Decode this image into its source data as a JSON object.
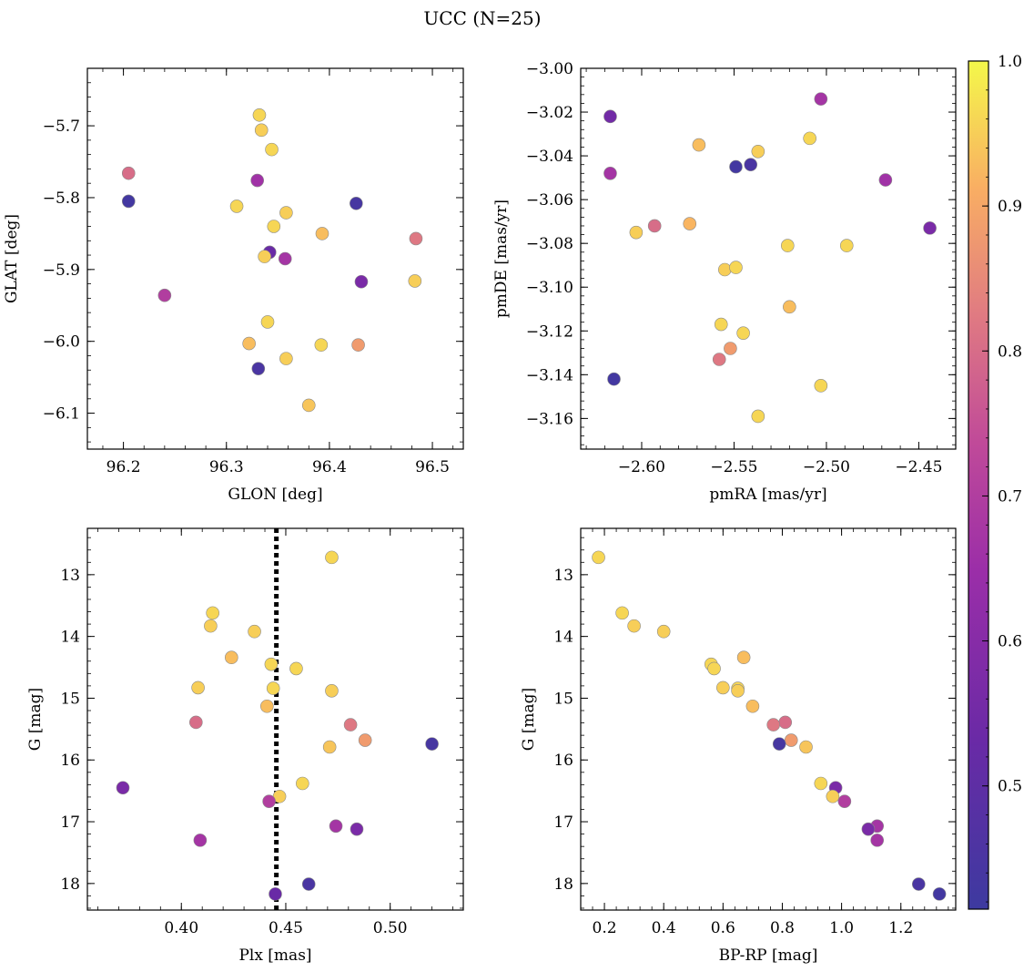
{
  "figure_title": "UCC (N=25)",
  "colors": {
    "marker_edge": "#8a8a8a",
    "axis": "#000000",
    "colormap": "plasma",
    "reference_line": "#000000"
  },
  "colorbar": {
    "min": 0.415,
    "max": 1.0,
    "ticks": [
      0.5,
      0.6,
      0.7,
      0.8,
      0.9,
      1.0
    ],
    "tick_labels": [
      "0.5",
      "0.6",
      "0.7",
      "0.8",
      "0.9",
      "1.0"
    ]
  },
  "chart_data": [
    {
      "type": "scatter",
      "xlabel": "GLON [deg]",
      "ylabel": "GLAT [deg]",
      "xlim": [
        96.165,
        96.53
      ],
      "ylim": [
        -6.15,
        -5.62
      ],
      "y_inverted": false,
      "xticks": [
        96.2,
        96.3,
        96.4,
        96.5
      ],
      "xtick_labels": [
        "96.2",
        "96.3",
        "96.4",
        "96.5"
      ],
      "yticks": [
        -6.1,
        -6.0,
        -5.9,
        -5.8,
        -5.7
      ],
      "ytick_labels": [
        "−6.1",
        "−6.0",
        "−5.9",
        "−5.8",
        "−5.7"
      ],
      "points": [
        {
          "x": 96.332,
          "y": -5.685,
          "c": 0.96
        },
        {
          "x": 96.334,
          "y": -5.706,
          "c": 0.95
        },
        {
          "x": 96.344,
          "y": -5.733,
          "c": 0.96
        },
        {
          "x": 96.205,
          "y": -5.766,
          "c": 0.8
        },
        {
          "x": 96.33,
          "y": -5.776,
          "c": 0.66
        },
        {
          "x": 96.205,
          "y": -5.805,
          "c": 0.43
        },
        {
          "x": 96.426,
          "y": -5.808,
          "c": 0.44
        },
        {
          "x": 96.31,
          "y": -5.812,
          "c": 0.96
        },
        {
          "x": 96.358,
          "y": -5.821,
          "c": 0.95
        },
        {
          "x": 96.346,
          "y": -5.84,
          "c": 0.96
        },
        {
          "x": 96.393,
          "y": -5.85,
          "c": 0.93
        },
        {
          "x": 96.484,
          "y": -5.857,
          "c": 0.82
        },
        {
          "x": 96.342,
          "y": -5.876,
          "c": 0.53
        },
        {
          "x": 96.337,
          "y": -5.882,
          "c": 0.95
        },
        {
          "x": 96.357,
          "y": -5.885,
          "c": 0.67
        },
        {
          "x": 96.431,
          "y": -5.917,
          "c": 0.57
        },
        {
          "x": 96.483,
          "y": -5.916,
          "c": 0.95
        },
        {
          "x": 96.24,
          "y": -5.936,
          "c": 0.7
        },
        {
          "x": 96.34,
          "y": -5.973,
          "c": 0.96
        },
        {
          "x": 96.322,
          "y": -6.003,
          "c": 0.93
        },
        {
          "x": 96.392,
          "y": -6.005,
          "c": 0.96
        },
        {
          "x": 96.428,
          "y": -6.005,
          "c": 0.88
        },
        {
          "x": 96.331,
          "y": -6.038,
          "c": 0.45
        },
        {
          "x": 96.358,
          "y": -6.024,
          "c": 0.95
        },
        {
          "x": 96.38,
          "y": -6.089,
          "c": 0.94
        }
      ]
    },
    {
      "type": "scatter",
      "xlabel": "pmRA [mas/yr]",
      "ylabel": "pmDE [mas/yr]",
      "xlim": [
        -2.633,
        -2.43
      ],
      "ylim": [
        -3.174,
        -3.0
      ],
      "y_inverted": false,
      "xticks": [
        -2.6,
        -2.55,
        -2.5,
        -2.45
      ],
      "xtick_labels": [
        "−2.60",
        "−2.55",
        "−2.50",
        "−2.45"
      ],
      "yticks": [
        -3.16,
        -3.14,
        -3.12,
        -3.1,
        -3.08,
        -3.06,
        -3.04,
        -3.02,
        -3.0
      ],
      "ytick_labels": [
        "−3.16",
        "−3.14",
        "−3.12",
        "−3.10",
        "−3.08",
        "−3.06",
        "−3.04",
        "−3.02",
        "−3.00"
      ],
      "points": [
        {
          "x": -2.503,
          "y": -3.014,
          "c": 0.67
        },
        {
          "x": -2.617,
          "y": -3.022,
          "c": 0.55
        },
        {
          "x": -2.509,
          "y": -3.032,
          "c": 0.96
        },
        {
          "x": -2.569,
          "y": -3.035,
          "c": 0.93
        },
        {
          "x": -2.537,
          "y": -3.038,
          "c": 0.95
        },
        {
          "x": -2.549,
          "y": -3.045,
          "c": 0.43
        },
        {
          "x": -2.541,
          "y": -3.044,
          "c": 0.45
        },
        {
          "x": -2.617,
          "y": -3.048,
          "c": 0.67
        },
        {
          "x": -2.468,
          "y": -3.051,
          "c": 0.66
        },
        {
          "x": -2.574,
          "y": -3.071,
          "c": 0.92
        },
        {
          "x": -2.593,
          "y": -3.072,
          "c": 0.8
        },
        {
          "x": -2.444,
          "y": -3.073,
          "c": 0.57
        },
        {
          "x": -2.603,
          "y": -3.075,
          "c": 0.95
        },
        {
          "x": -2.521,
          "y": -3.081,
          "c": 0.96
        },
        {
          "x": -2.489,
          "y": -3.081,
          "c": 0.96
        },
        {
          "x": -2.555,
          "y": -3.092,
          "c": 0.95
        },
        {
          "x": -2.549,
          "y": -3.091,
          "c": 0.96
        },
        {
          "x": -2.52,
          "y": -3.109,
          "c": 0.93
        },
        {
          "x": -2.557,
          "y": -3.117,
          "c": 0.96
        },
        {
          "x": -2.545,
          "y": -3.121,
          "c": 0.96
        },
        {
          "x": -2.552,
          "y": -3.128,
          "c": 0.88
        },
        {
          "x": -2.558,
          "y": -3.133,
          "c": 0.82
        },
        {
          "x": -2.615,
          "y": -3.142,
          "c": 0.43
        },
        {
          "x": -2.503,
          "y": -3.145,
          "c": 0.96
        },
        {
          "x": -2.537,
          "y": -3.159,
          "c": 0.96
        }
      ]
    },
    {
      "type": "scatter",
      "xlabel": "Plx [mas]",
      "ylabel": "G [mag]",
      "xlim": [
        0.355,
        0.535
      ],
      "ylim": [
        12.25,
        18.43
      ],
      "y_inverted": true,
      "vline": 0.4455,
      "xticks": [
        0.4,
        0.45,
        0.5
      ],
      "xtick_labels": [
        "0.40",
        "0.45",
        "0.50"
      ],
      "yticks": [
        13,
        14,
        15,
        16,
        17,
        18
      ],
      "ytick_labels": [
        "13",
        "14",
        "15",
        "16",
        "17",
        "18"
      ],
      "points": [
        {
          "x": 0.472,
          "y": 12.72,
          "c": 0.96
        },
        {
          "x": 0.415,
          "y": 13.62,
          "c": 0.96
        },
        {
          "x": 0.414,
          "y": 13.83,
          "c": 0.95
        },
        {
          "x": 0.435,
          "y": 13.92,
          "c": 0.95
        },
        {
          "x": 0.424,
          "y": 14.34,
          "c": 0.93
        },
        {
          "x": 0.443,
          "y": 14.45,
          "c": 0.96
        },
        {
          "x": 0.455,
          "y": 14.52,
          "c": 0.96
        },
        {
          "x": 0.408,
          "y": 14.83,
          "c": 0.95
        },
        {
          "x": 0.444,
          "y": 14.84,
          "c": 0.96
        },
        {
          "x": 0.472,
          "y": 14.88,
          "c": 0.95
        },
        {
          "x": 0.441,
          "y": 15.13,
          "c": 0.93
        },
        {
          "x": 0.407,
          "y": 15.39,
          "c": 0.8
        },
        {
          "x": 0.481,
          "y": 15.43,
          "c": 0.82
        },
        {
          "x": 0.488,
          "y": 15.68,
          "c": 0.88
        },
        {
          "x": 0.471,
          "y": 15.79,
          "c": 0.94
        },
        {
          "x": 0.52,
          "y": 15.74,
          "c": 0.44
        },
        {
          "x": 0.458,
          "y": 16.38,
          "c": 0.96
        },
        {
          "x": 0.372,
          "y": 16.45,
          "c": 0.57
        },
        {
          "x": 0.447,
          "y": 16.59,
          "c": 0.95
        },
        {
          "x": 0.442,
          "y": 16.67,
          "c": 0.7
        },
        {
          "x": 0.474,
          "y": 17.07,
          "c": 0.67
        },
        {
          "x": 0.484,
          "y": 17.12,
          "c": 0.57
        },
        {
          "x": 0.409,
          "y": 17.3,
          "c": 0.67
        },
        {
          "x": 0.461,
          "y": 18.01,
          "c": 0.45
        },
        {
          "x": 0.445,
          "y": 18.17,
          "c": 0.53
        }
      ]
    },
    {
      "type": "scatter",
      "xlabel": "BP-RP [mag]",
      "ylabel": "G [mag]",
      "xlim": [
        0.12,
        1.385
      ],
      "ylim": [
        12.25,
        18.43
      ],
      "y_inverted": true,
      "xticks": [
        0.2,
        0.4,
        0.6,
        0.8,
        1.0,
        1.2
      ],
      "xtick_labels": [
        "0.2",
        "0.4",
        "0.6",
        "0.8",
        "1.0",
        "1.2"
      ],
      "yticks": [
        13,
        14,
        15,
        16,
        17,
        18
      ],
      "ytick_labels": [
        "13",
        "14",
        "15",
        "16",
        "17",
        "18"
      ],
      "points": [
        {
          "x": 0.18,
          "y": 12.72,
          "c": 0.96
        },
        {
          "x": 0.26,
          "y": 13.62,
          "c": 0.96
        },
        {
          "x": 0.3,
          "y": 13.83,
          "c": 0.95
        },
        {
          "x": 0.4,
          "y": 13.92,
          "c": 0.95
        },
        {
          "x": 0.67,
          "y": 14.34,
          "c": 0.93
        },
        {
          "x": 0.56,
          "y": 14.45,
          "c": 0.96
        },
        {
          "x": 0.57,
          "y": 14.52,
          "c": 0.96
        },
        {
          "x": 0.6,
          "y": 14.83,
          "c": 0.95
        },
        {
          "x": 0.65,
          "y": 14.84,
          "c": 0.96
        },
        {
          "x": 0.65,
          "y": 14.88,
          "c": 0.95
        },
        {
          "x": 0.7,
          "y": 15.13,
          "c": 0.93
        },
        {
          "x": 0.81,
          "y": 15.39,
          "c": 0.8
        },
        {
          "x": 0.77,
          "y": 15.43,
          "c": 0.82
        },
        {
          "x": 0.83,
          "y": 15.68,
          "c": 0.88
        },
        {
          "x": 0.88,
          "y": 15.79,
          "c": 0.94
        },
        {
          "x": 0.79,
          "y": 15.74,
          "c": 0.44
        },
        {
          "x": 0.93,
          "y": 16.38,
          "c": 0.96
        },
        {
          "x": 0.98,
          "y": 16.45,
          "c": 0.57
        },
        {
          "x": 0.97,
          "y": 16.59,
          "c": 0.95
        },
        {
          "x": 1.01,
          "y": 16.67,
          "c": 0.7
        },
        {
          "x": 1.12,
          "y": 17.07,
          "c": 0.67
        },
        {
          "x": 1.09,
          "y": 17.12,
          "c": 0.57
        },
        {
          "x": 1.12,
          "y": 17.3,
          "c": 0.67
        },
        {
          "x": 1.26,
          "y": 18.01,
          "c": 0.45
        },
        {
          "x": 1.33,
          "y": 18.17,
          "c": 0.43
        }
      ]
    }
  ]
}
